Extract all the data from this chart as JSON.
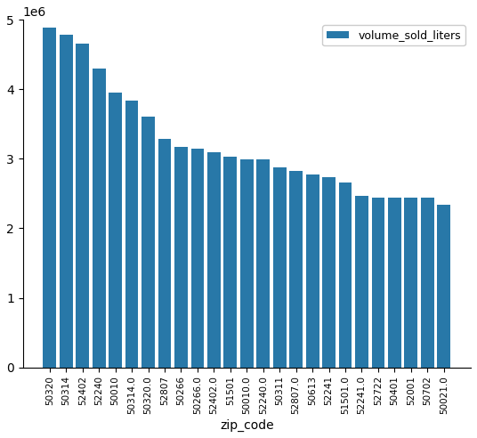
{
  "zip_codes": [
    "50320",
    "50314",
    "52402",
    "52240",
    "50010",
    "50314.0",
    "50320.0",
    "52807",
    "50266",
    "50266.0",
    "52402.0",
    "51501",
    "50010.0",
    "52240.0",
    "50311",
    "52807.0",
    "50613",
    "52241",
    "51501.0",
    "52241.0",
    "52722",
    "50401",
    "52001",
    "50702",
    "50021.0"
  ],
  "values": [
    4880000,
    4780000,
    4660000,
    4300000,
    3950000,
    3830000,
    3600000,
    3290000,
    3170000,
    3140000,
    3100000,
    3030000,
    2990000,
    2990000,
    2880000,
    2820000,
    2780000,
    2740000,
    2660000,
    2460000,
    2440000,
    2440000,
    2440000,
    2440000,
    2340000
  ],
  "bar_color": "#2878a8",
  "xlabel": "zip_code",
  "legend_label": "volume_sold_liters",
  "ylim": [
    0,
    5000000
  ],
  "figwidth": 5.36,
  "figheight": 4.92,
  "dpi": 100
}
